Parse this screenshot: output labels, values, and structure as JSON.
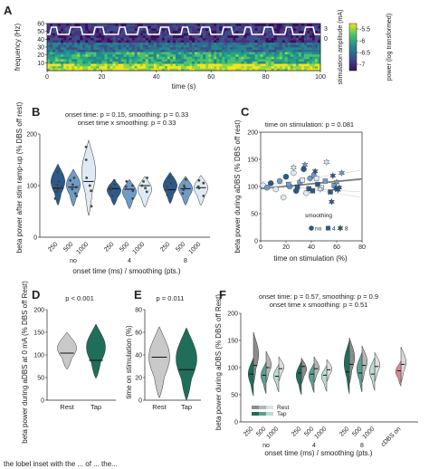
{
  "caption_fragment": "the lobel inset with the ... of ... the...",
  "chart_data": [
    {
      "id": "A",
      "type": "heatmap",
      "panel_letter": "A",
      "xlabel": "time (s)",
      "ylabel": "frequency (Hz)",
      "x_ticks": [
        0,
        20,
        40,
        60,
        80,
        100
      ],
      "y_ticks": [
        10,
        20,
        30,
        40,
        50,
        60
      ],
      "xlim": [
        0,
        100
      ],
      "ylim": [
        0,
        60
      ],
      "colorbar_label": "power (log transformed)",
      "colorbar_ticks": [
        "-5.5",
        "-6",
        "-6.5",
        "-7"
      ],
      "right_axis_label": "stimulation amplitude (mA)",
      "right_axis_ticks": [
        "3",
        "0"
      ],
      "stimulation_trace": {
        "description_values_mA": [
          3,
          0
        ],
        "on_segments_s": [
          [
            1,
            4
          ],
          [
            8,
            13
          ],
          [
            17,
            21
          ],
          [
            26,
            29
          ],
          [
            33,
            37
          ],
          [
            41,
            45
          ],
          [
            49,
            52
          ],
          [
            56,
            60
          ],
          [
            64,
            68
          ],
          [
            72,
            75
          ],
          [
            79,
            83
          ],
          [
            87,
            90
          ],
          [
            94,
            98
          ]
        ]
      }
    },
    {
      "id": "B",
      "type": "violin",
      "panel_letter": "B",
      "ylabel": "beta power after stim ramp-up (% DBS off rest)",
      "xlabel": "onset time (ms) / smoothing (pts.)",
      "ylim": [
        0,
        200
      ],
      "y_ticks": [
        0,
        100,
        200
      ],
      "stats": [
        "onset time: p = 0.15, smoothing: p = 0.33",
        "onset time x smoothing: p = 0.33"
      ],
      "categories": [
        "250",
        "500",
        "1000",
        "250",
        "500",
        "1000",
        "250",
        "500",
        "1000"
      ],
      "group_labels": [
        "no",
        "4",
        "8"
      ],
      "colors": [
        "#2b5a8a",
        "#6f9cc6",
        "#dfeaf5",
        "#2b5a8a",
        "#6f9cc6",
        "#dfeaf5",
        "#2b5a8a",
        "#6f9cc6",
        "#dfeaf5"
      ],
      "medians": [
        95,
        97,
        108,
        94,
        93,
        100,
        92,
        94,
        96
      ],
      "ranges": [
        [
          62,
          142
        ],
        [
          60,
          132
        ],
        [
          42,
          188
        ],
        [
          62,
          112
        ],
        [
          55,
          112
        ],
        [
          58,
          118
        ],
        [
          65,
          126
        ],
        [
          62,
          118
        ],
        [
          62,
          120
        ]
      ],
      "points": [
        [
          88,
          92,
          97,
          101,
          108,
          75,
          126
        ],
        [
          85,
          93,
          97,
          102,
          110,
          115,
          80
        ],
        [
          60,
          90,
          100,
          115,
          150,
          175
        ],
        [
          80,
          92,
          96,
          102,
          110
        ],
        [
          75,
          90,
          98,
          100,
          108
        ],
        [
          88,
          95,
          100,
          108,
          115
        ],
        [
          82,
          92,
          98,
          104,
          115
        ],
        [
          85,
          92,
          96,
          100,
          112
        ],
        [
          80,
          95,
          98,
          105,
          110
        ]
      ]
    },
    {
      "id": "C",
      "type": "scatter",
      "panel_letter": "C",
      "title": "time on stimulation: p = 0.081",
      "xlabel": "time on stimulation (%)",
      "ylabel": "beta power during aDBS (% DBS off rest)",
      "xlim": [
        0,
        80
      ],
      "ylim": [
        0,
        200
      ],
      "x_ticks": [
        0,
        20,
        40,
        60,
        80
      ],
      "y_ticks": [
        0,
        50,
        100,
        150,
        200
      ],
      "legend_title": "smoothing",
      "legend": [
        "no",
        "4",
        "8"
      ],
      "legend_placement": "bottom-right",
      "fit_line": {
        "x": [
          0,
          80
        ],
        "y": [
          96,
          114
        ]
      },
      "points": [
        {
          "x": 2,
          "y": 102,
          "m": "circle",
          "c": "#dfeaf5"
        },
        {
          "x": 5,
          "y": 98,
          "m": "circle",
          "c": "#6f9cc6"
        },
        {
          "x": 8,
          "y": 106,
          "m": "circle",
          "c": "#2b5a8a"
        },
        {
          "x": 12,
          "y": 95,
          "m": "circle",
          "c": "#dfeaf5"
        },
        {
          "x": 15,
          "y": 110,
          "m": "circle",
          "c": "#6f9cc6"
        },
        {
          "x": 18,
          "y": 80,
          "m": "circle",
          "c": "#dfeaf5"
        },
        {
          "x": 20,
          "y": 118,
          "m": "circle",
          "c": "#2b5a8a"
        },
        {
          "x": 23,
          "y": 100,
          "m": "circle",
          "c": "#6f9cc6"
        },
        {
          "x": 26,
          "y": 125,
          "m": "circle",
          "c": "#dfeaf5"
        },
        {
          "x": 28,
          "y": 92,
          "m": "circle",
          "c": "#2b5a8a"
        },
        {
          "x": 31,
          "y": 108,
          "m": "circle",
          "c": "#6f9cc6"
        },
        {
          "x": 34,
          "y": 132,
          "m": "circle",
          "c": "#2b5a8a"
        },
        {
          "x": 36,
          "y": 88,
          "m": "circle",
          "c": "#dfeaf5"
        },
        {
          "x": 39,
          "y": 115,
          "m": "circle",
          "c": "#6f9cc6"
        },
        {
          "x": 22,
          "y": 104,
          "m": "square",
          "c": "#6f9cc6"
        },
        {
          "x": 29,
          "y": 99,
          "m": "square",
          "c": "#2b5a8a"
        },
        {
          "x": 33,
          "y": 112,
          "m": "square",
          "c": "#dfeaf5"
        },
        {
          "x": 38,
          "y": 96,
          "m": "square",
          "c": "#2b5a8a"
        },
        {
          "x": 42,
          "y": 120,
          "m": "square",
          "c": "#6f9cc6"
        },
        {
          "x": 45,
          "y": 104,
          "m": "square",
          "c": "#2b5a8a"
        },
        {
          "x": 48,
          "y": 98,
          "m": "square",
          "c": "#dfeaf5"
        },
        {
          "x": 51,
          "y": 110,
          "m": "square",
          "c": "#6f9cc6"
        },
        {
          "x": 55,
          "y": 90,
          "m": "square",
          "c": "#2b5a8a"
        },
        {
          "x": 58,
          "y": 102,
          "m": "square",
          "c": "#6f9cc6"
        },
        {
          "x": 41,
          "y": 92,
          "m": "square",
          "c": "#2b5a8a"
        },
        {
          "x": 44,
          "y": 115,
          "m": "square",
          "c": "#dfeaf5"
        },
        {
          "x": 26,
          "y": 135,
          "m": "star",
          "c": "#dfeaf5"
        },
        {
          "x": 35,
          "y": 140,
          "m": "star",
          "c": "#6f9cc6"
        },
        {
          "x": 43,
          "y": 128,
          "m": "star",
          "c": "#2b5a8a"
        },
        {
          "x": 52,
          "y": 145,
          "m": "star",
          "c": "#dfeaf5"
        },
        {
          "x": 57,
          "y": 120,
          "m": "star",
          "c": "#2b5a8a"
        },
        {
          "x": 60,
          "y": 108,
          "m": "star",
          "c": "#6f9cc6"
        },
        {
          "x": 62,
          "y": 98,
          "m": "star",
          "c": "#2b5a8a"
        },
        {
          "x": 64,
          "y": 125,
          "m": "star",
          "c": "#6f9cc6"
        },
        {
          "x": 47,
          "y": 95,
          "m": "star",
          "c": "#dfeaf5"
        },
        {
          "x": 56,
          "y": 72,
          "m": "star",
          "c": "#2b5a8a"
        },
        {
          "x": 59,
          "y": 96,
          "m": "star",
          "c": "#2b5a8a"
        },
        {
          "x": 61,
          "y": 94,
          "m": "star",
          "c": "#2b5a8a"
        }
      ]
    },
    {
      "id": "D",
      "type": "violin",
      "panel_letter": "D",
      "title": "p < 0.001",
      "ylabel": "beta power during aDBS at 0 mA (% DBS off Rest)",
      "categories": [
        "Rest",
        "Tap"
      ],
      "colors": [
        "#c9c9c9",
        "#1f6e5a"
      ],
      "ylim": [
        0,
        200
      ],
      "y_ticks": [
        0,
        50,
        100,
        150,
        200
      ],
      "medians": [
        104,
        88
      ],
      "ranges": [
        [
          68,
          150
        ],
        [
          48,
          168
        ]
      ]
    },
    {
      "id": "E",
      "type": "violin",
      "panel_letter": "E",
      "title": "p = 0.011",
      "ylabel": "time on stimulation (%)",
      "categories": [
        "Rest",
        "Tap"
      ],
      "colors": [
        "#c9c9c9",
        "#1f6e5a"
      ],
      "ylim": [
        0,
        80
      ],
      "y_ticks": [
        0,
        20,
        40,
        60,
        80
      ],
      "medians": [
        38,
        27
      ],
      "ranges": [
        [
          2,
          65
        ],
        [
          0,
          64
        ]
      ]
    },
    {
      "id": "F",
      "type": "violin",
      "panel_letter": "F",
      "stats": [
        "onset time: p = 0.57, smoothing: p = 0.9",
        "onset time x smoothing: p = 0.51"
      ],
      "ylabel": "beta power during aDBS (% DBS off Rest)",
      "xlabel": "onset time (ms) / smoothing (pts.)",
      "ylim": [
        0,
        200
      ],
      "y_ticks": [
        0,
        50,
        100,
        150,
        200
      ],
      "categories": [
        "250",
        "500",
        "1000",
        "250",
        "500",
        "1000",
        "250",
        "500",
        "1000",
        "cDBS on"
      ],
      "group_labels": [
        "no",
        "4",
        "8"
      ],
      "legend": [
        "Rest",
        "Tap"
      ],
      "legend_colors": {
        "Rest": [
          "#8c8c8c",
          "#b5b5b5",
          "#dedede"
        ],
        "Tap": [
          "#1f6e5a",
          "#5aa090",
          "#b8ddd4"
        ]
      },
      "cdbs_color": "#d98a96",
      "rest_medians": [
        104,
        100,
        98,
        102,
        98,
        96,
        106,
        104,
        102,
        106
      ],
      "tap_medians": [
        88,
        86,
        84,
        90,
        88,
        86,
        92,
        90,
        88,
        94
      ],
      "rest_ranges": [
        [
          70,
          165
        ],
        [
          72,
          130
        ],
        [
          75,
          120
        ],
        [
          70,
          118
        ],
        [
          72,
          120
        ],
        [
          74,
          115
        ],
        [
          70,
          155
        ],
        [
          72,
          140
        ],
        [
          74,
          128
        ],
        [
          72,
          138
        ]
      ],
      "tap_ranges": [
        [
          48,
          118
        ],
        [
          52,
          110
        ],
        [
          55,
          106
        ],
        [
          50,
          112
        ],
        [
          54,
          108
        ],
        [
          56,
          104
        ],
        [
          52,
          150
        ],
        [
          55,
          128
        ],
        [
          58,
          118
        ],
        [
          66,
          112
        ]
      ]
    }
  ]
}
